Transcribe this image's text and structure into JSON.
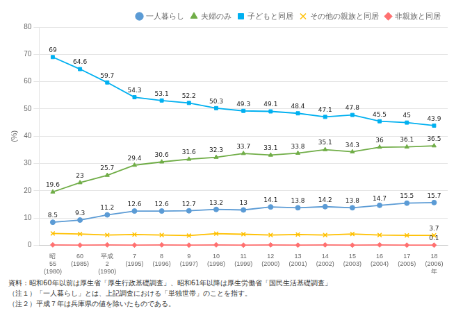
{
  "chart_data": {
    "type": "line",
    "y_label": "(%)",
    "categories": [
      "昭\n55\n(1980)",
      "60\n(1985)",
      "平成\n2\n(1990)",
      "7\n(1995)",
      "8\n(1996)",
      "9\n(1997)",
      "10\n(1998)",
      "11\n(1999)",
      "12\n(2000)",
      "13\n(2001)",
      "14\n(2002)",
      "15\n(2003)",
      "16\n(2004)",
      "17\n(2005)",
      "18\n(2006)\n年"
    ],
    "series": [
      {
        "name": "一人暮らし",
        "color": "#5b9bd5",
        "marker": "circle",
        "line_style": "solid",
        "data_labels": true,
        "values": [
          8.5,
          9.3,
          11.2,
          12.6,
          12.6,
          12.7,
          13.2,
          13.0,
          14.1,
          13.8,
          14.2,
          13.8,
          14.7,
          15.5,
          15.7
        ]
      },
      {
        "name": "夫婦のみ",
        "color": "#70ad47",
        "marker": "triangle",
        "line_style": "solid",
        "data_labels": true,
        "values": [
          19.6,
          23.0,
          25.7,
          29.4,
          30.6,
          31.6,
          32.3,
          33.7,
          33.1,
          33.8,
          35.1,
          34.3,
          36.0,
          36.1,
          36.5
        ]
      },
      {
        "name": "子どもと同居",
        "color": "#00b0f0",
        "marker": "square",
        "line_style": "solid",
        "data_labels": true,
        "values": [
          69.0,
          64.6,
          59.7,
          54.3,
          53.1,
          52.2,
          50.3,
          49.3,
          49.1,
          48.4,
          47.1,
          47.8,
          45.5,
          45.0,
          43.9
        ]
      },
      {
        "name": "その他の親族と同居",
        "color": "#ffc000",
        "marker": "x",
        "line_style": "solid",
        "values": [
          4.4,
          4.2,
          3.8,
          4.0,
          3.8,
          3.6,
          4.3,
          4.1,
          3.8,
          4.0,
          3.8,
          4.2,
          3.8,
          3.7,
          3.7
        ],
        "value_labels": [
          null,
          null,
          null,
          null,
          null,
          null,
          null,
          null,
          null,
          null,
          null,
          null,
          null,
          null,
          "3.7"
        ]
      },
      {
        "name": "非親族と同居",
        "color": "#ff7070",
        "marker": "diamond",
        "line_style": "solid",
        "values": [
          0.2,
          0.1,
          0.2,
          0.1,
          0.2,
          0.1,
          0.2,
          0.1,
          0.2,
          0.1,
          0.2,
          0.1,
          0.2,
          0.1,
          0.1
        ],
        "value_labels": [
          null,
          null,
          null,
          null,
          null,
          null,
          null,
          null,
          null,
          null,
          null,
          null,
          null,
          null,
          "0.1"
        ]
      }
    ],
    "ylim": [
      0,
      80
    ],
    "yticks": [
      0,
      10,
      20,
      30,
      40,
      50,
      60,
      70,
      80
    ],
    "grid": true,
    "legend": "upper right",
    "notes": [
      "資料：昭和60年以前は厚生省「厚生行政基礎調査」、昭和61年以降は厚生労働省「国民生活基礎調査」",
      "（注１）「一人暮らし」とは、上記調査における「単独世帯」のことを指す。",
      "（注２）平成７年は兵庫県の値を除いたものである。"
    ]
  }
}
